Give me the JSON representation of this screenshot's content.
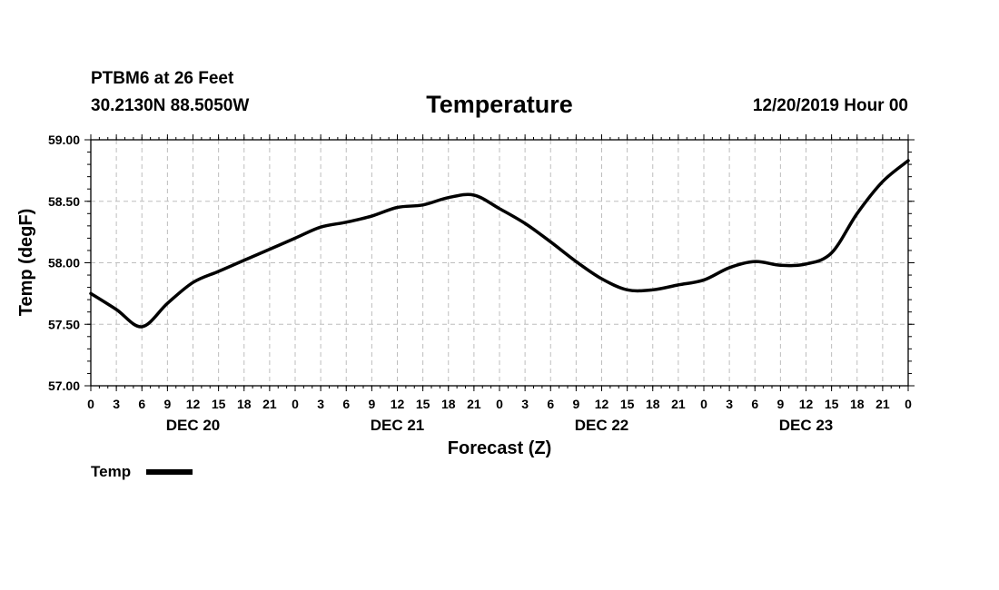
{
  "header": {
    "station": "PTBM6 at 26 Feet",
    "coords": "30.2130N 88.5050W",
    "title": "Temperature",
    "run": "12/20/2019 Hour 00"
  },
  "chart_data": {
    "type": "line",
    "title": "Temperature",
    "xlabel": "Forecast (Z)",
    "ylabel": "Temp (degF)",
    "ylim": [
      57.0,
      59.0
    ],
    "y_ticks": [
      "57.00",
      "57.50",
      "58.00",
      "58.50",
      "59.00"
    ],
    "xlim_hours": [
      0,
      96
    ],
    "x_tick_labels": [
      "0",
      "3",
      "6",
      "9",
      "12",
      "15",
      "18",
      "21",
      "0",
      "3",
      "6",
      "9",
      "12",
      "15",
      "18",
      "21",
      "0",
      "3",
      "6",
      "9",
      "12",
      "15",
      "18",
      "21",
      "0",
      "3",
      "6",
      "9",
      "12",
      "15",
      "18",
      "21",
      "0"
    ],
    "day_labels": [
      {
        "label": "DEC 20",
        "hour": 12
      },
      {
        "label": "DEC 21",
        "hour": 36
      },
      {
        "label": "DEC 22",
        "hour": 60
      },
      {
        "label": "DEC 23",
        "hour": 84
      }
    ],
    "grid": true,
    "legend": "bottom-left",
    "series": [
      {
        "name": "Temp",
        "color": "#000000",
        "x_hours": [
          0,
          3,
          6,
          9,
          12,
          15,
          18,
          21,
          24,
          27,
          30,
          33,
          36,
          39,
          42,
          45,
          48,
          51,
          54,
          57,
          60,
          63,
          66,
          69,
          72,
          75,
          78,
          81,
          84,
          87,
          90,
          93,
          96
        ],
        "values": [
          57.75,
          57.62,
          57.48,
          57.67,
          57.84,
          57.93,
          58.02,
          58.11,
          58.2,
          58.29,
          58.33,
          58.38,
          58.45,
          58.47,
          58.53,
          58.55,
          58.44,
          58.32,
          58.17,
          58.01,
          57.87,
          57.78,
          57.78,
          57.82,
          57.86,
          57.96,
          58.01,
          57.98,
          57.99,
          58.08,
          58.4,
          58.66,
          58.83
        ]
      }
    ]
  }
}
